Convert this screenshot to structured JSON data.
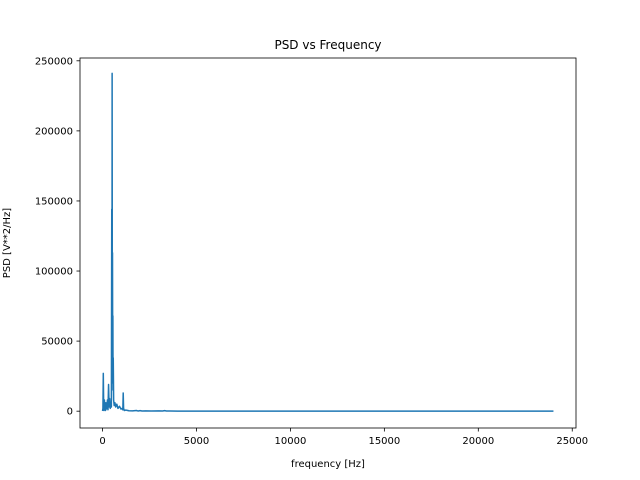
{
  "chart_data": {
    "type": "line",
    "title": "PSD vs Frequency",
    "xlabel": "frequency [Hz]",
    "ylabel": "PSD [V**2/Hz]",
    "xlim": [
      -1200,
      25200
    ],
    "ylim": [
      -12000,
      252000
    ],
    "xticks": [
      0,
      5000,
      10000,
      15000,
      20000,
      25000
    ],
    "yticks": [
      0,
      50000,
      100000,
      150000,
      200000,
      250000
    ],
    "grid": false,
    "legend": "none",
    "series": [
      {
        "color": "#1f77b4",
        "x": [
          0,
          20,
          40,
          60,
          80,
          100,
          120,
          140,
          160,
          180,
          200,
          230,
          260,
          290,
          320,
          350,
          380,
          410,
          440,
          470,
          490,
          500,
          510,
          520,
          530,
          540,
          550,
          560,
          570,
          590,
          620,
          660,
          700,
          760,
          820,
          900,
          980,
          1040,
          1080,
          1100,
          1120,
          1160,
          1240,
          1400,
          1600,
          1800,
          1900,
          2000,
          2100,
          2300,
          2600,
          3000,
          3200,
          3300,
          3400,
          3600,
          4000,
          6000,
          10000,
          15000,
          20000,
          24000
        ],
        "y": [
          100,
          2000,
          27000,
          4000,
          500,
          8000,
          1000,
          3000,
          500,
          6000,
          1500,
          2000,
          8000,
          1000,
          19000,
          3000,
          9000,
          2000,
          6000,
          3000,
          144000,
          20000,
          241000,
          60000,
          113000,
          38000,
          68000,
          15000,
          38000,
          8000,
          4000,
          6000,
          3000,
          5000,
          2000,
          3500,
          1500,
          2000,
          1000,
          13000,
          2000,
          500,
          800,
          300,
          200,
          500,
          100,
          400,
          100,
          200,
          100,
          200,
          100,
          400,
          100,
          100,
          50,
          30,
          20,
          10,
          5,
          0
        ]
      }
    ]
  }
}
